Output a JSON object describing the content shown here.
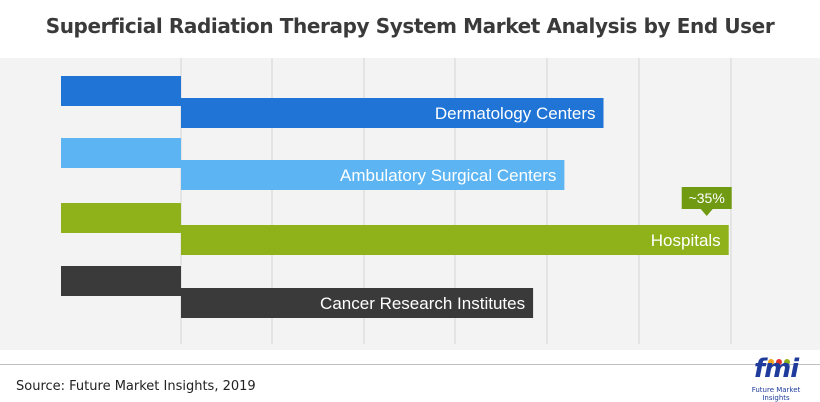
{
  "title": "Superficial Radiation Therapy System Market Analysis by End User",
  "source": "Source: Future Market Insights, 2019",
  "logo": {
    "text": "fmi",
    "subtitle": "Future Market Insights"
  },
  "colors": {
    "background": "#f3f3f3",
    "gridline": "#d6d6d6",
    "callout": "#6f9a12",
    "bars": [
      "#1f74d6",
      "#5cb5f2",
      "#8fb21b",
      "#3a3a3a"
    ],
    "shadows": [
      "#1458b0",
      "#3f9ad8",
      "#6f8d12",
      "#262626"
    ]
  },
  "chart_data": {
    "type": "bar",
    "orientation": "horizontal",
    "title": "Superficial Radiation Therapy System Market Analysis by End User",
    "categories": [
      "Dermatology Centers",
      "Ambulatory Surgical Centers",
      "Hospitals",
      "Cancer Research Institutes"
    ],
    "values": [
      27,
      24.5,
      35,
      22.5
    ],
    "units": "% share (approx.)",
    "annotations": [
      {
        "category": "Hospitals",
        "text": "~35%"
      }
    ],
    "xlim": [
      0,
      37
    ],
    "grid": true,
    "xlabel": "",
    "ylabel": ""
  }
}
